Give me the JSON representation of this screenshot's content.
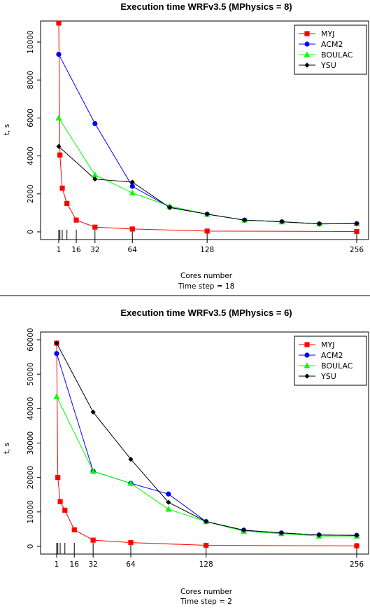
{
  "chart_data": [
    {
      "type": "line",
      "title": "Execution time WRFv3.5 (MPhysics = 8)",
      "xlabel": "Cores number",
      "subtitle": "Time step = 18",
      "ylabel": "t, s",
      "xlim": [
        -5,
        262
      ],
      "ylim": [
        0,
        11000
      ],
      "x_ticks": [
        1,
        16,
        32,
        64,
        128,
        256
      ],
      "y_ticks": [
        0,
        2000,
        4000,
        6000,
        8000,
        10000
      ],
      "rug": [
        1,
        2,
        4,
        8,
        16,
        32,
        64,
        128,
        256
      ],
      "legend": "top-right",
      "series": [
        {
          "name": "MYJ",
          "color": "#ff0000",
          "marker": "square",
          "x": [
            1,
            2,
            4,
            8,
            16,
            32,
            64,
            128,
            256
          ],
          "y": [
            11000,
            4050,
            2300,
            1500,
            620,
            250,
            150,
            40,
            20
          ]
        },
        {
          "name": "ACM2",
          "color": "#0000ff",
          "marker": "circle",
          "x": [
            1,
            32,
            64,
            96,
            128,
            160,
            192,
            224,
            256
          ],
          "y": [
            9350,
            5700,
            2400,
            1300,
            930,
            620,
            530,
            420,
            430
          ]
        },
        {
          "name": "BOULAC",
          "color": "#00ff00",
          "marker": "triangle",
          "x": [
            1,
            32,
            64,
            96,
            128,
            160,
            192,
            224,
            256
          ],
          "y": [
            6000,
            3000,
            2050,
            1350,
            930,
            620,
            530,
            420,
            430
          ]
        },
        {
          "name": "YSU",
          "color": "#000000",
          "marker": "diamond",
          "x": [
            1,
            32,
            64,
            96,
            128,
            160,
            192,
            224,
            256
          ],
          "y": [
            4500,
            2780,
            2620,
            1280,
            930,
            620,
            530,
            420,
            430
          ]
        }
      ]
    },
    {
      "type": "line",
      "title": "Execution time WRFv3.5 (MPhysics = 6)",
      "xlabel": "Cores number",
      "subtitle": "Time step = 2",
      "ylabel": "t, s",
      "xlim": [
        -5,
        262
      ],
      "ylim": [
        0,
        60000
      ],
      "x_ticks": [
        1,
        16,
        32,
        64,
        128,
        256
      ],
      "y_ticks": [
        0,
        10000,
        20000,
        30000,
        40000,
        50000,
        60000
      ],
      "rug": [
        1,
        2,
        4,
        8,
        16,
        32,
        64,
        128,
        256
      ],
      "legend": "top-right",
      "series": [
        {
          "name": "MYJ",
          "color": "#ff0000",
          "marker": "square",
          "x": [
            1,
            2,
            4,
            8,
            16,
            32,
            64,
            128,
            256
          ],
          "y": [
            59000,
            20000,
            13000,
            10500,
            4800,
            1800,
            1100,
            300,
            150
          ]
        },
        {
          "name": "ACM2",
          "color": "#0000ff",
          "marker": "circle",
          "x": [
            1,
            32,
            64,
            96,
            128,
            160,
            192,
            224,
            256
          ],
          "y": [
            56000,
            21800,
            18300,
            15200,
            7200,
            4700,
            3900,
            3300,
            3200
          ]
        },
        {
          "name": "BOULAC",
          "color": "#00ff00",
          "marker": "triangle",
          "x": [
            1,
            32,
            64,
            96,
            128,
            160,
            192,
            224,
            256
          ],
          "y": [
            43500,
            21800,
            18300,
            10800,
            7200,
            4400,
            3700,
            3000,
            3000
          ]
        },
        {
          "name": "YSU",
          "color": "#000000",
          "marker": "diamond",
          "x": [
            1,
            32,
            64,
            96,
            128,
            160,
            192,
            224,
            256
          ],
          "y": [
            59000,
            39000,
            25300,
            12800,
            7200,
            4700,
            3900,
            3300,
            3200
          ]
        }
      ]
    }
  ]
}
